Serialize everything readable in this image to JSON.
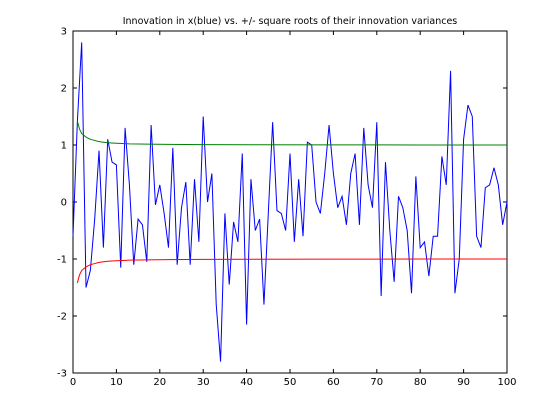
{
  "chart_data": {
    "type": "line",
    "title": "Innovation in x(blue) vs. +/- square roots of their innovation variances",
    "xlabel": "",
    "ylabel": "",
    "xlim": [
      0,
      100
    ],
    "ylim": [
      -3,
      3
    ],
    "x_ticks": [
      0,
      10,
      20,
      30,
      40,
      50,
      60,
      70,
      80,
      90,
      100
    ],
    "y_ticks": [
      -3,
      -2,
      -1,
      0,
      1,
      2,
      3
    ],
    "grid": false,
    "legend": "none",
    "series": [
      {
        "color": "#0000ff",
        "x": [
          0,
          1,
          2,
          3,
          4,
          5,
          6,
          7,
          8,
          9,
          10,
          11,
          12,
          13,
          14,
          15,
          16,
          17,
          18,
          19,
          20,
          21,
          22,
          23,
          24,
          25,
          26,
          27,
          28,
          29,
          30,
          31,
          32,
          33,
          34,
          35,
          36,
          37,
          38,
          39,
          40,
          41,
          42,
          43,
          44,
          45,
          46,
          47,
          48,
          49,
          50,
          51,
          52,
          53,
          54,
          55,
          56,
          57,
          58,
          59,
          60,
          61,
          62,
          63,
          64,
          65,
          66,
          67,
          68,
          69,
          70,
          71,
          72,
          73,
          74,
          75,
          76,
          77,
          78,
          79,
          80,
          81,
          82,
          83,
          84,
          85,
          86,
          87,
          88,
          89,
          90,
          91,
          92,
          93,
          94,
          95,
          96,
          97,
          98,
          99,
          100
        ],
        "values": [
          -0.6,
          1.4,
          2.8,
          -1.5,
          -1.2,
          -0.3,
          0.9,
          -0.8,
          1.1,
          0.7,
          0.65,
          -1.15,
          1.3,
          0.3,
          -1.1,
          -0.3,
          -0.4,
          -1.05,
          1.35,
          -0.05,
          0.3,
          -0.2,
          -0.8,
          0.95,
          -1.1,
          -0.1,
          0.35,
          -1.1,
          0.4,
          -0.7,
          1.5,
          0.0,
          0.5,
          -1.8,
          -2.8,
          -0.2,
          -1.45,
          -0.35,
          -0.7,
          0.85,
          -2.15,
          0.4,
          -0.5,
          -0.3,
          -1.8,
          -0.2,
          1.4,
          -0.15,
          -0.2,
          -0.5,
          0.85,
          -0.7,
          0.4,
          -0.6,
          1.05,
          1.0,
          0.0,
          -0.2,
          0.5,
          1.35,
          0.5,
          -0.1,
          0.1,
          -0.4,
          0.5,
          0.85,
          -0.4,
          1.3,
          0.3,
          -0.1,
          1.4,
          -1.65,
          0.7,
          -0.5,
          -1.4,
          0.1,
          -0.1,
          -0.5,
          -1.6,
          0.45,
          -0.8,
          -0.7,
          -1.3,
          -0.6,
          -0.6,
          0.8,
          0.3,
          2.3,
          -1.6,
          -1.0,
          1.1,
          1.7,
          1.5,
          -0.6,
          -0.8,
          0.25,
          0.3,
          0.6,
          0.3,
          -0.4,
          0.0
        ]
      },
      {
        "color": "#008000",
        "x": [
          1,
          1.5,
          2,
          3,
          4,
          5,
          6,
          8,
          10,
          13,
          17,
          22,
          30,
          40,
          60,
          80,
          100
        ],
        "values": [
          1.42,
          1.28,
          1.2,
          1.14,
          1.1,
          1.08,
          1.06,
          1.04,
          1.03,
          1.02,
          1.015,
          1.01,
          1.006,
          1.004,
          1.002,
          1.001,
          1.0
        ]
      },
      {
        "color": "#ff0000",
        "x": [
          1,
          1.5,
          2,
          3,
          4,
          5,
          6,
          8,
          10,
          13,
          17,
          22,
          30,
          40,
          60,
          80,
          100
        ],
        "values": [
          -1.42,
          -1.28,
          -1.2,
          -1.14,
          -1.1,
          -1.08,
          -1.06,
          -1.04,
          -1.03,
          -1.02,
          -1.015,
          -1.01,
          -1.006,
          -1.004,
          -1.002,
          -1.001,
          -1.0
        ]
      }
    ]
  }
}
